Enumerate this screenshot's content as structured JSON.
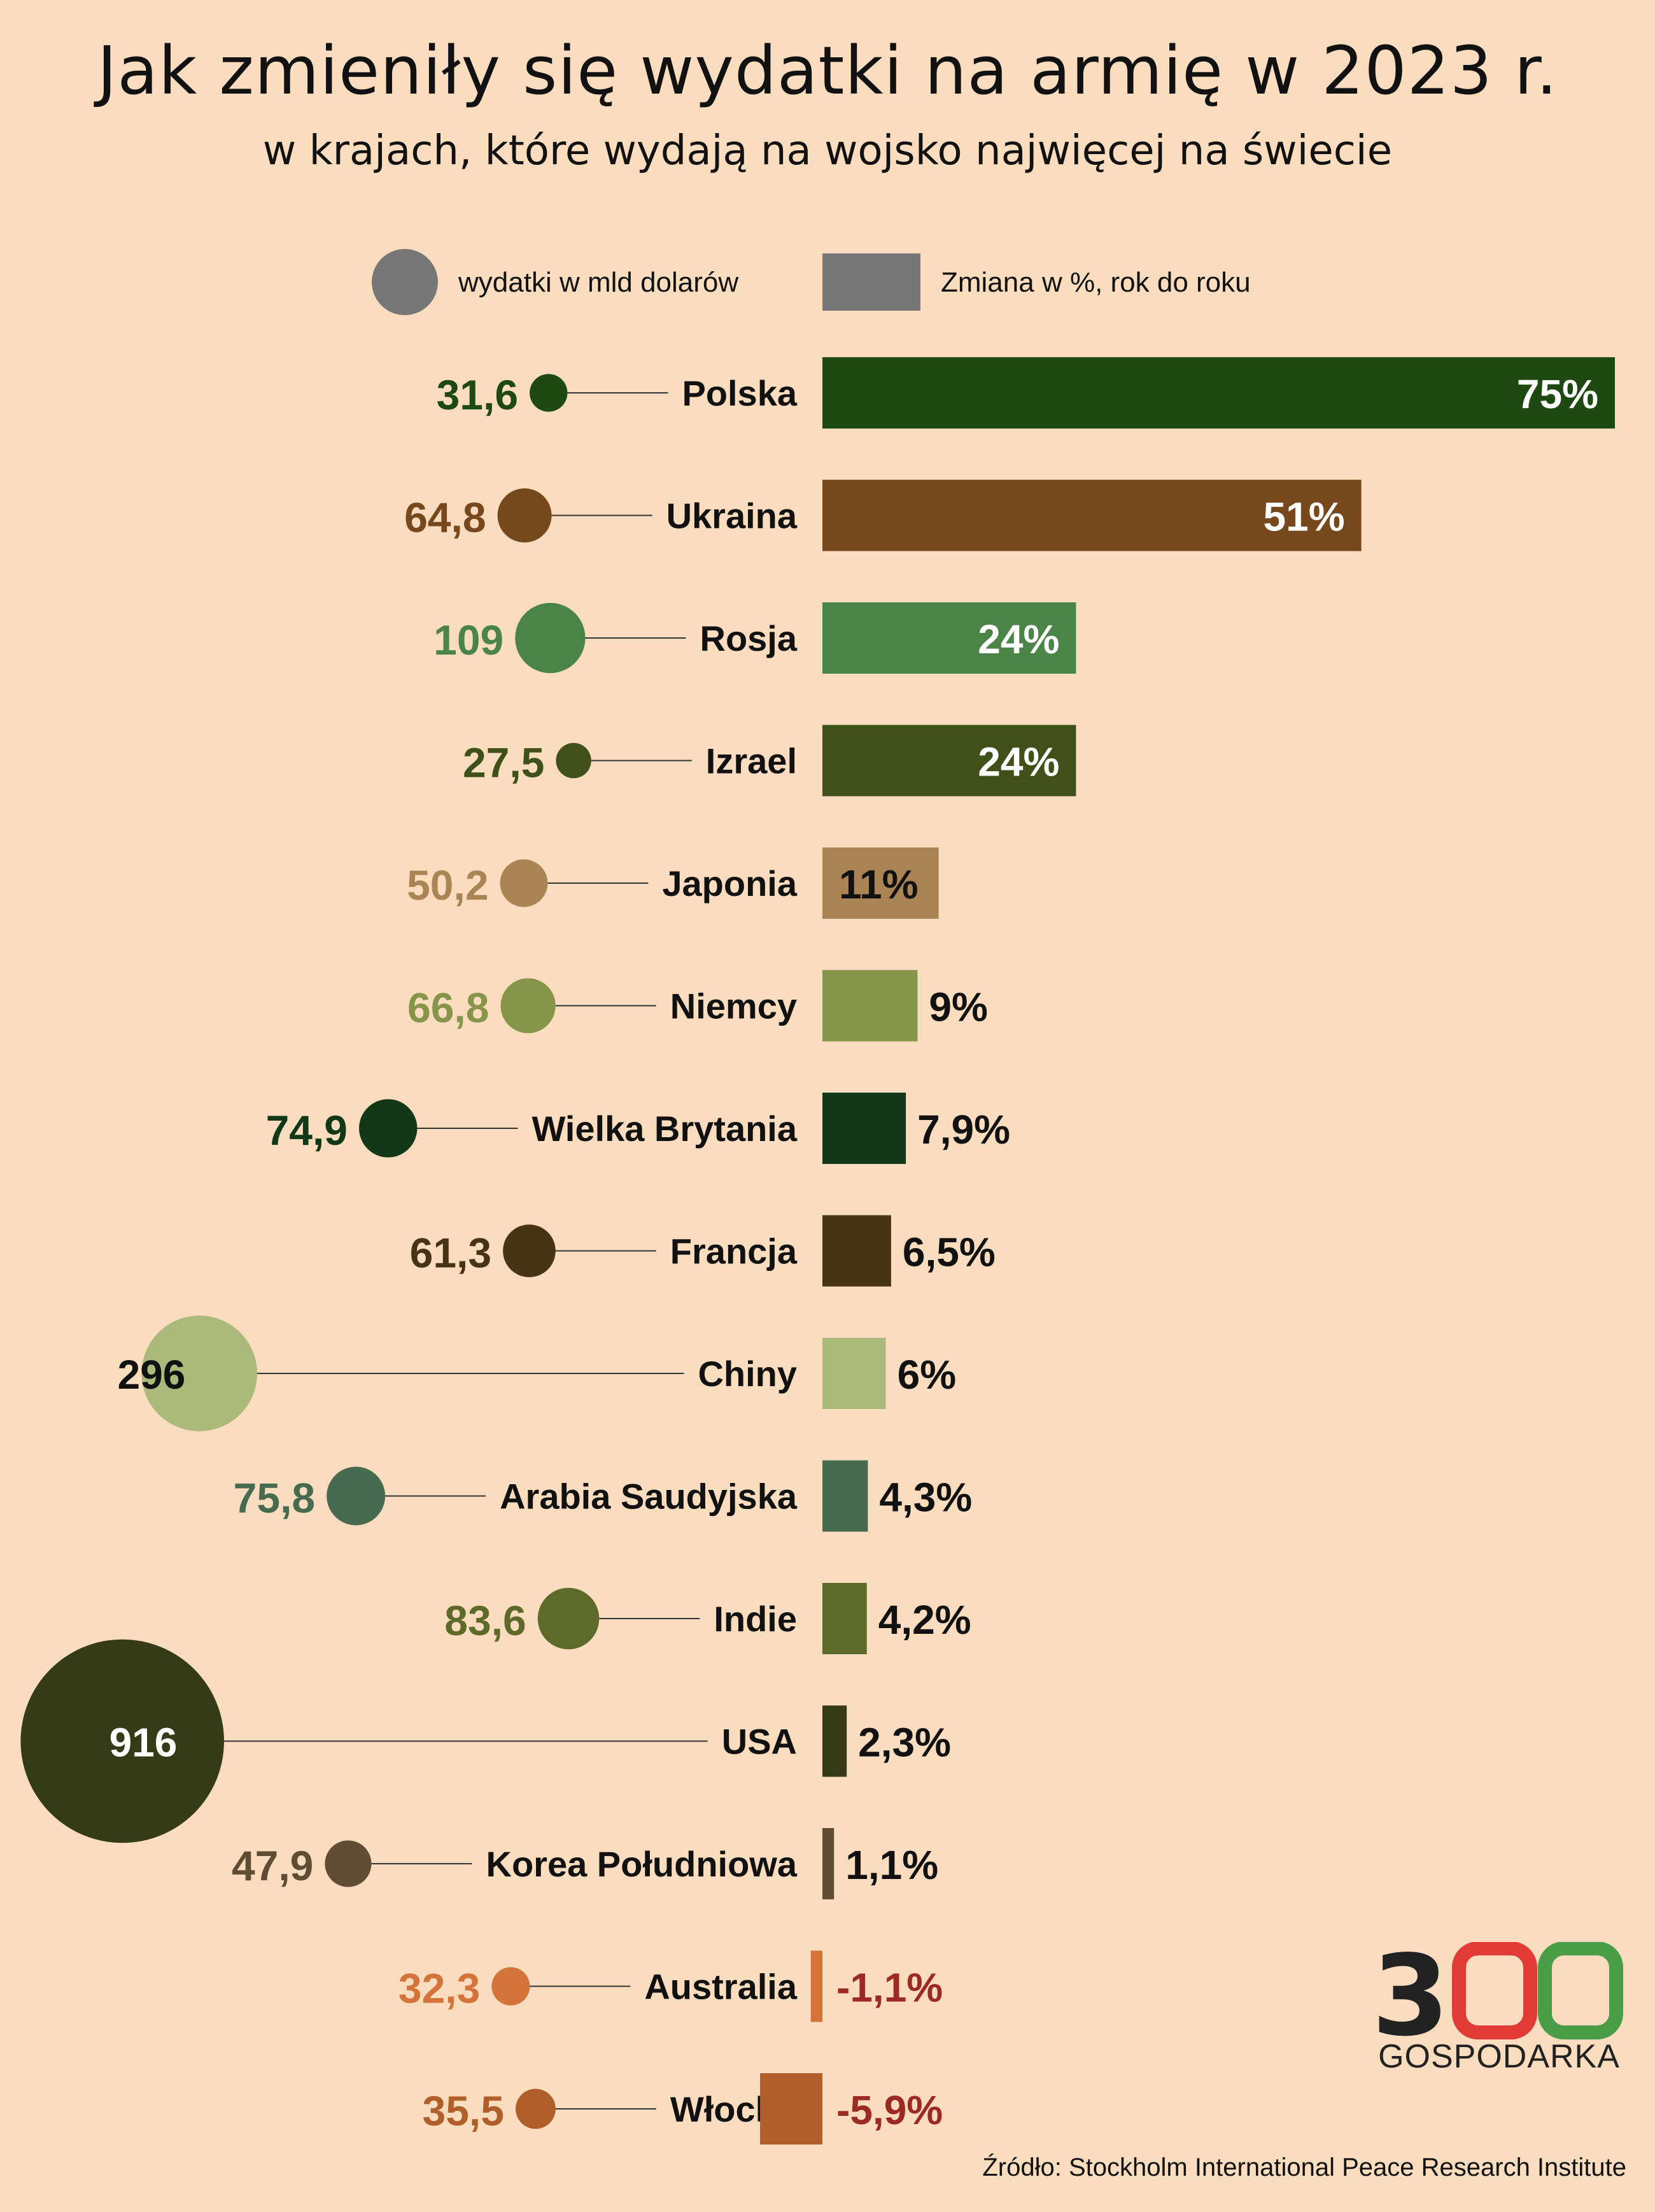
{
  "title": "Jak zmieniły się wydatki na armię w 2023 r.",
  "subtitle": "w krajach, które wydają na wojsko najwięcej na świecie",
  "source": "Źródło: Stockholm International Peace Research Institute",
  "logo": {
    "number": "300",
    "word": "GOSPODARKA",
    "colors": {
      "dark": "#222222",
      "red": "#e23b35",
      "green": "#4a9d47"
    }
  },
  "chart_data": {
    "type": "bar",
    "legend": [
      {
        "shape": "circle",
        "label": "wydatki w mld dolarów",
        "color": "#777777"
      },
      {
        "shape": "rect",
        "label": "Zmiana w %, rok do roku",
        "color": "#777777"
      }
    ],
    "series": [
      {
        "legend": "wydatki w mld dolarów",
        "kind": "bubble"
      },
      {
        "legend": "Zmiana w %, rok do roku",
        "kind": "bar"
      }
    ],
    "rows": [
      {
        "country": "Polska",
        "spending": 31.6,
        "spending_label": "31,6",
        "change": 75,
        "change_label": "75%",
        "color": "#1e4a12"
      },
      {
        "country": "Ukraina",
        "spending": 64.8,
        "spending_label": "64,8",
        "change": 51,
        "change_label": "51%",
        "color": "#76481b"
      },
      {
        "country": "Rosja",
        "spending": 109,
        "spending_label": "109",
        "change": 24,
        "change_label": "24%",
        "color": "#4a8446"
      },
      {
        "country": "Izrael",
        "spending": 27.5,
        "spending_label": "27,5",
        "change": 24,
        "change_label": "24%",
        "color": "#3f5019"
      },
      {
        "country": "Japonia",
        "spending": 50.2,
        "spending_label": "50,2",
        "change": 11,
        "change_label": "11%",
        "color": "#ab8455"
      },
      {
        "country": "Niemcy",
        "spending": 66.8,
        "spending_label": "66,8",
        "change": 9,
        "change_label": "9%",
        "color": "#869549"
      },
      {
        "country": "Wielka Brytania",
        "spending": 74.9,
        "spending_label": "74,9",
        "change": 7.9,
        "change_label": "7,9%",
        "color": "#133818"
      },
      {
        "country": "Francja",
        "spending": 61.3,
        "spending_label": "61,3",
        "change": 6.5,
        "change_label": "6,5%",
        "color": "#463415"
      },
      {
        "country": "Chiny",
        "spending": 296,
        "spending_label": "296",
        "change": 6,
        "change_label": "6%",
        "color": "#abb97a"
      },
      {
        "country": "Arabia Saudyjska",
        "spending": 75.8,
        "spending_label": "75,8",
        "change": 4.3,
        "change_label": "4,3%",
        "color": "#466b51"
      },
      {
        "country": "Indie",
        "spending": 83.6,
        "spending_label": "83,6",
        "change": 4.2,
        "change_label": "4,2%",
        "color": "#5e6a29"
      },
      {
        "country": "USA",
        "spending": 916,
        "spending_label": "916",
        "change": 2.3,
        "change_label": "2,3%",
        "color": "#343b16"
      },
      {
        "country": "Korea Południowa",
        "spending": 47.9,
        "spending_label": "47,9",
        "change": 1.1,
        "change_label": "1,1%",
        "color": "#614c36"
      },
      {
        "country": "Australia",
        "spending": 32.3,
        "spending_label": "32,3",
        "change": -1.1,
        "change_label": "-1,1%",
        "color": "#d4733a"
      },
      {
        "country": "Włochy",
        "spending": 35.5,
        "spending_label": "35,5",
        "change": -5.9,
        "change_label": "-5,9%",
        "color": "#b05f2b"
      }
    ],
    "negative_label_color": "#9c2a22"
  }
}
